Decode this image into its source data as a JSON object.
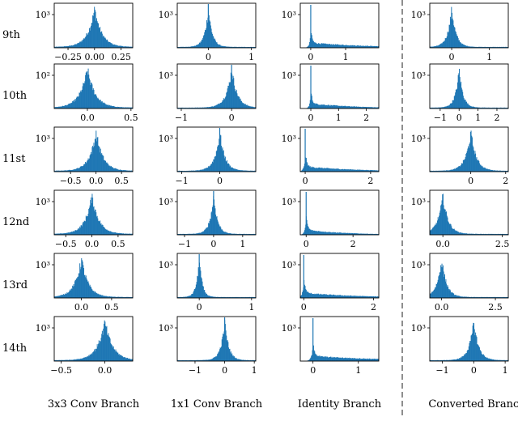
{
  "bar_color": "#1f77b4",
  "col_labels": [
    "3x3 Conv Branch",
    "1x1 Conv Branch",
    "Identity Branch",
    "Converted Branch"
  ],
  "row_labels": [
    "9th",
    "10th",
    "11st",
    "12nd",
    "13rd",
    "14th"
  ],
  "chart_data": {
    "type": "grid-histograms",
    "yscale": "log",
    "separator": "dashed vertical line between Identity Branch and Converted Branch",
    "panels": [
      {
        "row": "9th",
        "column": "3x3 Conv Branch",
        "shape": "laplace",
        "peak": 0.0,
        "xlim": [
          -0.38,
          0.36
        ],
        "xticks": [
          -0.25,
          0.0,
          0.25
        ],
        "xtick_labels": [
          "−0.25",
          "0.00",
          "0.25"
        ],
        "ytick_label": "10³",
        "ytick_exp": 3,
        "spike_at": null,
        "spread": 0.06
      },
      {
        "row": "9th",
        "column": "1x1 Conv Branch",
        "shape": "laplace",
        "peak": 0.0,
        "xlim": [
          -0.72,
          1.1
        ],
        "xticks": [
          0,
          1
        ],
        "xtick_labels": [
          "0",
          "1"
        ],
        "ytick_label": "10³",
        "ytick_exp": 3,
        "spike_at": 0.0,
        "spread": 0.08
      },
      {
        "row": "9th",
        "column": "Identity Branch",
        "shape": "spike-tail",
        "peak": 0.0,
        "xlim": [
          -0.3,
          1.95
        ],
        "xticks": [
          0,
          1
        ],
        "xtick_labels": [
          "0",
          "1"
        ],
        "ytick_label": "10³",
        "ytick_exp": 3,
        "spike_at": 0.0,
        "spread": 0.05
      },
      {
        "row": "9th",
        "column": "Converted Branch",
        "shape": "laplace",
        "peak": 0.0,
        "xlim": [
          -0.58,
          1.5
        ],
        "xticks": [
          0,
          1
        ],
        "xtick_labels": [
          "0",
          "1"
        ],
        "ytick_label": "10³",
        "ytick_exp": 3,
        "spike_at": null,
        "spread": 0.1
      },
      {
        "row": "10th",
        "column": "3x3 Conv Branch",
        "shape": "laplace",
        "peak": 0.0,
        "xlim": [
          -0.38,
          0.52
        ],
        "xticks": [
          0.0,
          0.5
        ],
        "xtick_labels": [
          "0.0",
          "0.5"
        ],
        "ytick_label": "10²",
        "ytick_exp": 2,
        "spike_at": null,
        "spread": 0.08
      },
      {
        "row": "10th",
        "column": "1x1 Conv Branch",
        "shape": "laplace",
        "peak": 0.0,
        "xlim": [
          -1.08,
          0.48
        ],
        "xticks": [
          -1,
          0
        ],
        "xtick_labels": [
          "−1",
          "0"
        ],
        "ytick_label": "10³",
        "ytick_exp": 3,
        "spike_at": 0.0,
        "spread": 0.1
      },
      {
        "row": "10th",
        "column": "Identity Branch",
        "shape": "spike-tail",
        "peak": 0.0,
        "xlim": [
          -0.38,
          2.45
        ],
        "xticks": [
          0,
          1,
          2
        ],
        "xtick_labels": [
          "0",
          "1",
          "2"
        ],
        "ytick_label": "10³",
        "ytick_exp": 3,
        "spike_at": 0.0,
        "spread": 0.06
      },
      {
        "row": "10th",
        "column": "Converted Branch",
        "shape": "laplace",
        "peak": 0.0,
        "xlim": [
          -1.55,
          2.6
        ],
        "xticks": [
          -1,
          0,
          1,
          2
        ],
        "xtick_labels": [
          "−1",
          "0",
          "1",
          "2"
        ],
        "ytick_label": "10³",
        "ytick_exp": 3,
        "spike_at": null,
        "spread": 0.18
      },
      {
        "row": "11st",
        "column": "3x3 Conv Branch",
        "shape": "laplace",
        "peak": 0.0,
        "xlim": [
          -0.82,
          0.72
        ],
        "xticks": [
          -0.5,
          0.0,
          0.5
        ],
        "xtick_labels": [
          "−0.5",
          "0.0",
          "0.5"
        ],
        "ytick_label": "10³",
        "ytick_exp": 3,
        "spike_at": null,
        "spread": 0.12
      },
      {
        "row": "11st",
        "column": "1x1 Conv Branch",
        "shape": "laplace",
        "peak": 0.0,
        "xlim": [
          -1.12,
          0.95
        ],
        "xticks": [
          -1,
          0
        ],
        "xtick_labels": [
          "−1",
          "0"
        ],
        "ytick_label": "10³",
        "ytick_exp": 3,
        "spike_at": 0.0,
        "spread": 0.12
      },
      {
        "row": "11st",
        "column": "Identity Branch",
        "shape": "spike-tail",
        "peak": 0.0,
        "xlim": [
          -0.15,
          2.25
        ],
        "xticks": [
          0,
          2
        ],
        "xtick_labels": [
          "0",
          "2"
        ],
        "ytick_label": "10³",
        "ytick_exp": 3,
        "spike_at": 0.0,
        "spread": 0.06
      },
      {
        "row": "11st",
        "column": "Converted Branch",
        "shape": "laplace",
        "peak": 0.0,
        "xlim": [
          -2.35,
          2.15
        ],
        "xticks": [
          0,
          2
        ],
        "xtick_labels": [
          "0",
          "2"
        ],
        "ytick_label": "10³",
        "ytick_exp": 3,
        "spike_at": null,
        "spread": 0.28
      },
      {
        "row": "12nd",
        "column": "3x3 Conv Branch",
        "shape": "laplace",
        "peak": 0.0,
        "xlim": [
          -0.72,
          0.78
        ],
        "xticks": [
          -0.5,
          0.0,
          0.5
        ],
        "xtick_labels": [
          "−0.5",
          "0.0",
          "0.5"
        ],
        "ytick_label": "10³",
        "ytick_exp": 3,
        "spike_at": null,
        "spread": 0.12
      },
      {
        "row": "12nd",
        "column": "1x1 Conv Branch",
        "shape": "laplace",
        "peak": 0.0,
        "xlim": [
          -1.25,
          1.45
        ],
        "xticks": [
          -1,
          0,
          1
        ],
        "xtick_labels": [
          "−1",
          "0",
          "1"
        ],
        "ytick_label": "10³",
        "ytick_exp": 3,
        "spike_at": 0.0,
        "spread": 0.12
      },
      {
        "row": "12nd",
        "column": "Identity Branch",
        "shape": "spike-tail",
        "peak": 0.0,
        "xlim": [
          -0.25,
          3.1
        ],
        "xticks": [
          0,
          2
        ],
        "xtick_labels": [
          "0",
          "2"
        ],
        "ytick_label": "10³",
        "ytick_exp": 3,
        "spike_at": 0.0,
        "spread": 0.08
      },
      {
        "row": "12nd",
        "column": "Converted Branch",
        "shape": "laplace",
        "peak": 0.0,
        "xlim": [
          -0.55,
          2.75
        ],
        "xticks": [
          0.0,
          2.5
        ],
        "xtick_labels": [
          "0.0",
          "2.5"
        ],
        "ytick_label": "10³",
        "ytick_exp": 3,
        "spike_at": null,
        "spread": 0.2
      },
      {
        "row": "13rd",
        "column": "3x3 Conv Branch",
        "shape": "laplace",
        "peak": 0.0,
        "xlim": [
          -0.45,
          0.85
        ],
        "xticks": [
          0.0,
          0.5
        ],
        "xtick_labels": [
          "0.0",
          "0.5"
        ],
        "ytick_label": "10³",
        "ytick_exp": 3,
        "spike_at": null,
        "spread": 0.1
      },
      {
        "row": "13rd",
        "column": "1x1 Conv Branch",
        "shape": "laplace",
        "peak": 0.0,
        "xlim": [
          -0.42,
          1.08
        ],
        "xticks": [
          0,
          1
        ],
        "xtick_labels": [
          "0",
          "1"
        ],
        "ytick_label": "10³",
        "ytick_exp": 3,
        "spike_at": 0.0,
        "spread": 0.05
      },
      {
        "row": "13rd",
        "column": "Identity Branch",
        "shape": "spike-tail",
        "peak": 0.0,
        "xlim": [
          -0.1,
          2.15
        ],
        "xticks": [
          0,
          2
        ],
        "xtick_labels": [
          "0",
          "2"
        ],
        "ytick_label": "10³",
        "ytick_exp": 3,
        "spike_at": 0.0,
        "spread": 0.06
      },
      {
        "row": "13rd",
        "column": "Converted Branch",
        "shape": "laplace",
        "peak": 0.0,
        "xlim": [
          -0.55,
          3.1
        ],
        "xticks": [
          0.0,
          2.5
        ],
        "xtick_labels": [
          "0.0",
          "2.5"
        ],
        "ytick_label": "10³",
        "ytick_exp": 3,
        "spike_at": null,
        "spread": 0.2
      },
      {
        "row": "14th",
        "column": "3x3 Conv Branch",
        "shape": "laplace",
        "peak": 0.0,
        "xlim": [
          -0.58,
          0.32
        ],
        "xticks": [
          -0.5,
          0.0
        ],
        "xtick_labels": [
          "−0.5",
          "0.0"
        ],
        "ytick_label": "10³",
        "ytick_exp": 3,
        "spike_at": null,
        "spread": 0.08
      },
      {
        "row": "14th",
        "column": "1x1 Conv Branch",
        "shape": "laplace",
        "peak": 0.0,
        "xlim": [
          -1.6,
          1.05
        ],
        "xticks": [
          -1,
          0,
          1
        ],
        "xtick_labels": [
          "−1",
          "0",
          "1"
        ],
        "ytick_label": "10³",
        "ytick_exp": 3,
        "spike_at": 0.0,
        "spread": 0.12
      },
      {
        "row": "14th",
        "column": "Identity Branch",
        "shape": "spike-tail",
        "peak": 0.0,
        "xlim": [
          -0.28,
          1.45
        ],
        "xticks": [
          0,
          1
        ],
        "xtick_labels": [
          "0",
          "1"
        ],
        "ytick_label": "10³",
        "ytick_exp": 3,
        "spike_at": 0.0,
        "spread": 0.05
      },
      {
        "row": "14th",
        "column": "Converted Branch",
        "shape": "laplace",
        "peak": 0.0,
        "xlim": [
          -1.4,
          1.1
        ],
        "xticks": [
          -1,
          0,
          1
        ],
        "xtick_labels": [
          "−1",
          "0",
          "1"
        ],
        "ytick_label": "10³",
        "ytick_exp": 3,
        "spike_at": null,
        "spread": 0.14
      }
    ]
  }
}
